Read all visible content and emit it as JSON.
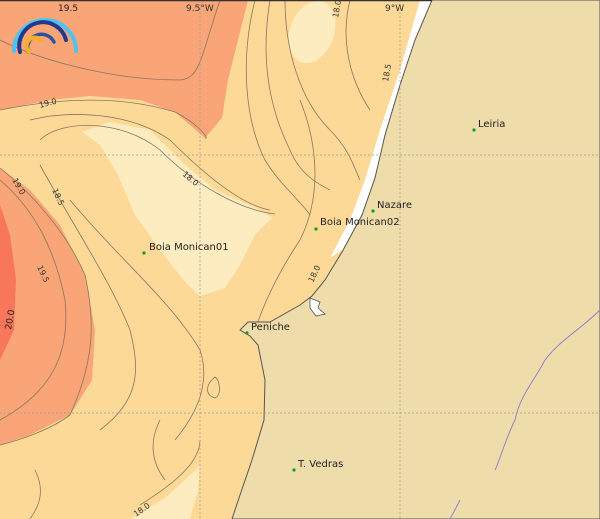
{
  "map": {
    "colors": {
      "land": "#eedcaa",
      "sea_19_5_plus": "#f9a577",
      "sea_20_plus": "#f8775a",
      "sea_18_to_19": "#fdd998",
      "sea_below_18": "#fdecc0",
      "station_marker": "#1a9a1a",
      "river": "#8a7acc"
    },
    "grid_labels": [
      "9.5°W",
      "9°W"
    ],
    "places": [
      {
        "name": "Leiria"
      },
      {
        "name": "Nazare"
      },
      {
        "name": "Boia Monican02"
      },
      {
        "name": "Boia Monican01"
      },
      {
        "name": "Peniche"
      },
      {
        "name": "T. Vedras"
      }
    ],
    "contour_labels": [
      "19.5",
      "19.0",
      "18.0",
      "18.5",
      "19.0",
      "19.5",
      "20.0",
      "18.0",
      "18.5",
      "18.0",
      "18.0"
    ],
    "logo": "wave-arcs-logo"
  }
}
